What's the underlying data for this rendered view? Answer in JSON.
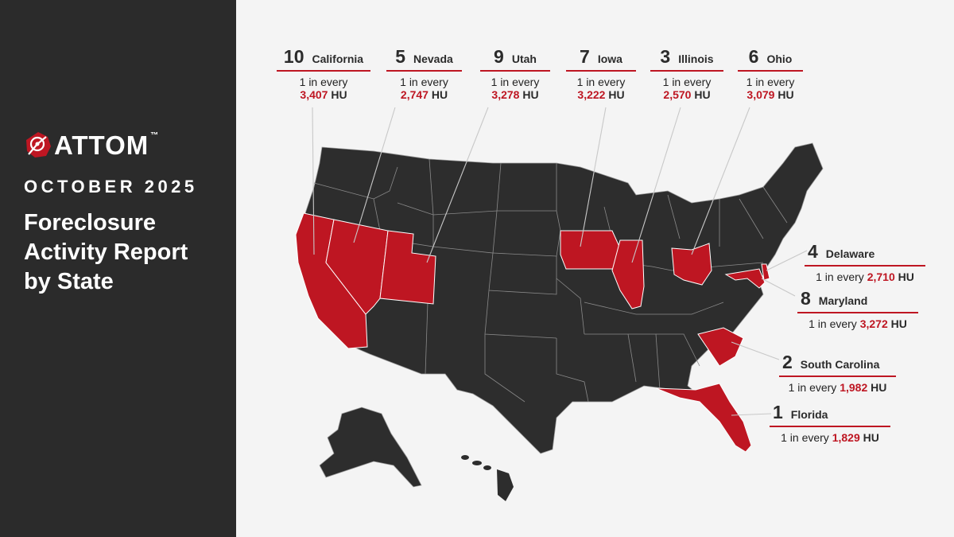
{
  "brand": {
    "name": "ATTOM",
    "trademark": "™"
  },
  "report": {
    "period": "OCTOBER 2025",
    "title_lines": [
      "Foreclosure",
      "Activity Report",
      "by State"
    ]
  },
  "rate_prefix": "1 in every",
  "rate_unit": "HU",
  "colors": {
    "highlight": "#be1622",
    "sidebar": "#2b2b2b",
    "map_fill": "#2d2d2d",
    "background": "#f4f4f4"
  },
  "states_ranked": [
    {
      "rank": "1",
      "state": "Florida",
      "rate": "1,829"
    },
    {
      "rank": "2",
      "state": "South Carolina",
      "rate": "1,982"
    },
    {
      "rank": "3",
      "state": "Illinois",
      "rate": "2,570"
    },
    {
      "rank": "4",
      "state": "Delaware",
      "rate": "2,710"
    },
    {
      "rank": "5",
      "state": "Nevada",
      "rate": "2,747"
    },
    {
      "rank": "6",
      "state": "Ohio",
      "rate": "3,079"
    },
    {
      "rank": "7",
      "state": "Iowa",
      "rate": "3,222"
    },
    {
      "rank": "8",
      "state": "Maryland",
      "rate": "3,272"
    },
    {
      "rank": "9",
      "state": "Utah",
      "rate": "3,278"
    },
    {
      "rank": "10",
      "state": "California",
      "rate": "3,407"
    }
  ]
}
